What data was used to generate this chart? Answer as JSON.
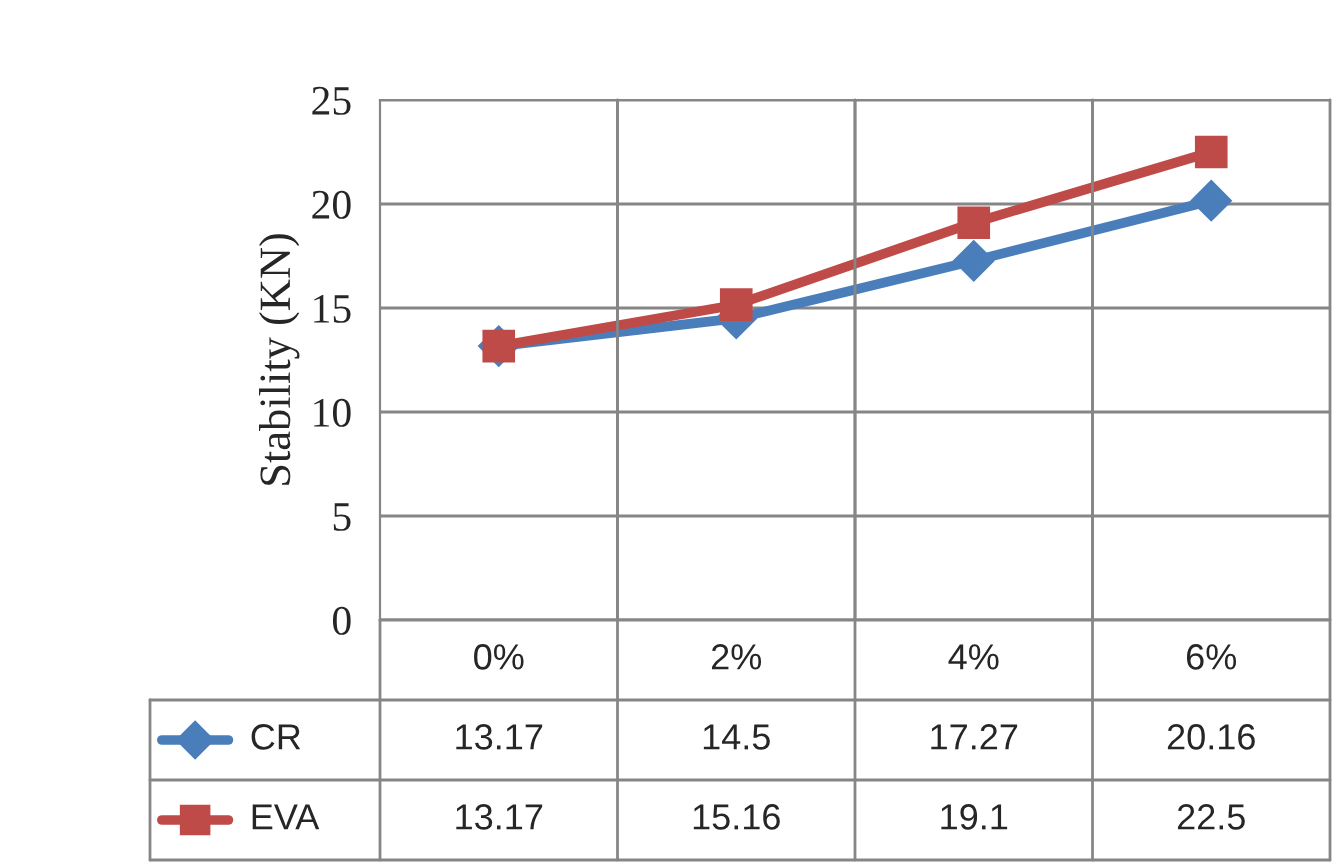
{
  "chart_data": {
    "type": "line",
    "ylabel": "Stability (KN)",
    "categories": [
      "0%",
      "2%",
      "4%",
      "6%"
    ],
    "series": [
      {
        "name": "CR",
        "color": "#4a7ebb",
        "marker": "diamond",
        "values": [
          13.17,
          14.5,
          17.27,
          20.16
        ]
      },
      {
        "name": "EVA",
        "color": "#be4b48",
        "marker": "square",
        "values": [
          13.17,
          15.16,
          19.1,
          22.5
        ]
      }
    ],
    "ylim": [
      0,
      25
    ],
    "yticks": [
      0,
      5,
      10,
      15,
      20,
      25
    ],
    "grid": true,
    "legend": "bottom",
    "data_labels": true,
    "line_style": "solid"
  }
}
